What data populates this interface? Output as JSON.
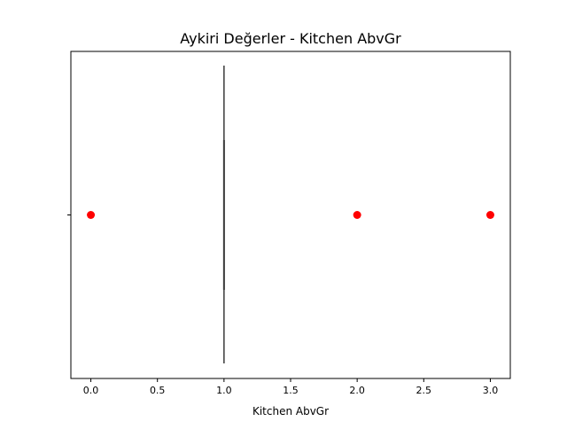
{
  "chart_data": {
    "type": "boxplot",
    "title": "Aykiri Değerler - Kitchen AbvGr",
    "xlabel": "Kitchen AbvGr",
    "ylabel": "",
    "xlim": [
      -0.15,
      3.15
    ],
    "x_ticks": [
      0.0,
      0.5,
      1.0,
      1.5,
      2.0,
      2.5,
      3.0
    ],
    "x_tick_labels": [
      "0.0",
      "0.5",
      "1.0",
      "1.5",
      "2.0",
      "2.5",
      "3.0"
    ],
    "y_ticks_labels": [
      ""
    ],
    "grid": false,
    "box": {
      "q1": 1.0,
      "median": 1.0,
      "q3": 1.0,
      "whisker_low": 1.0,
      "whisker_high": 1.0,
      "color": "#3a3a3a"
    },
    "outliers": {
      "x": [
        0.0,
        2.0,
        3.0
      ],
      "color": "#ff0000"
    }
  }
}
